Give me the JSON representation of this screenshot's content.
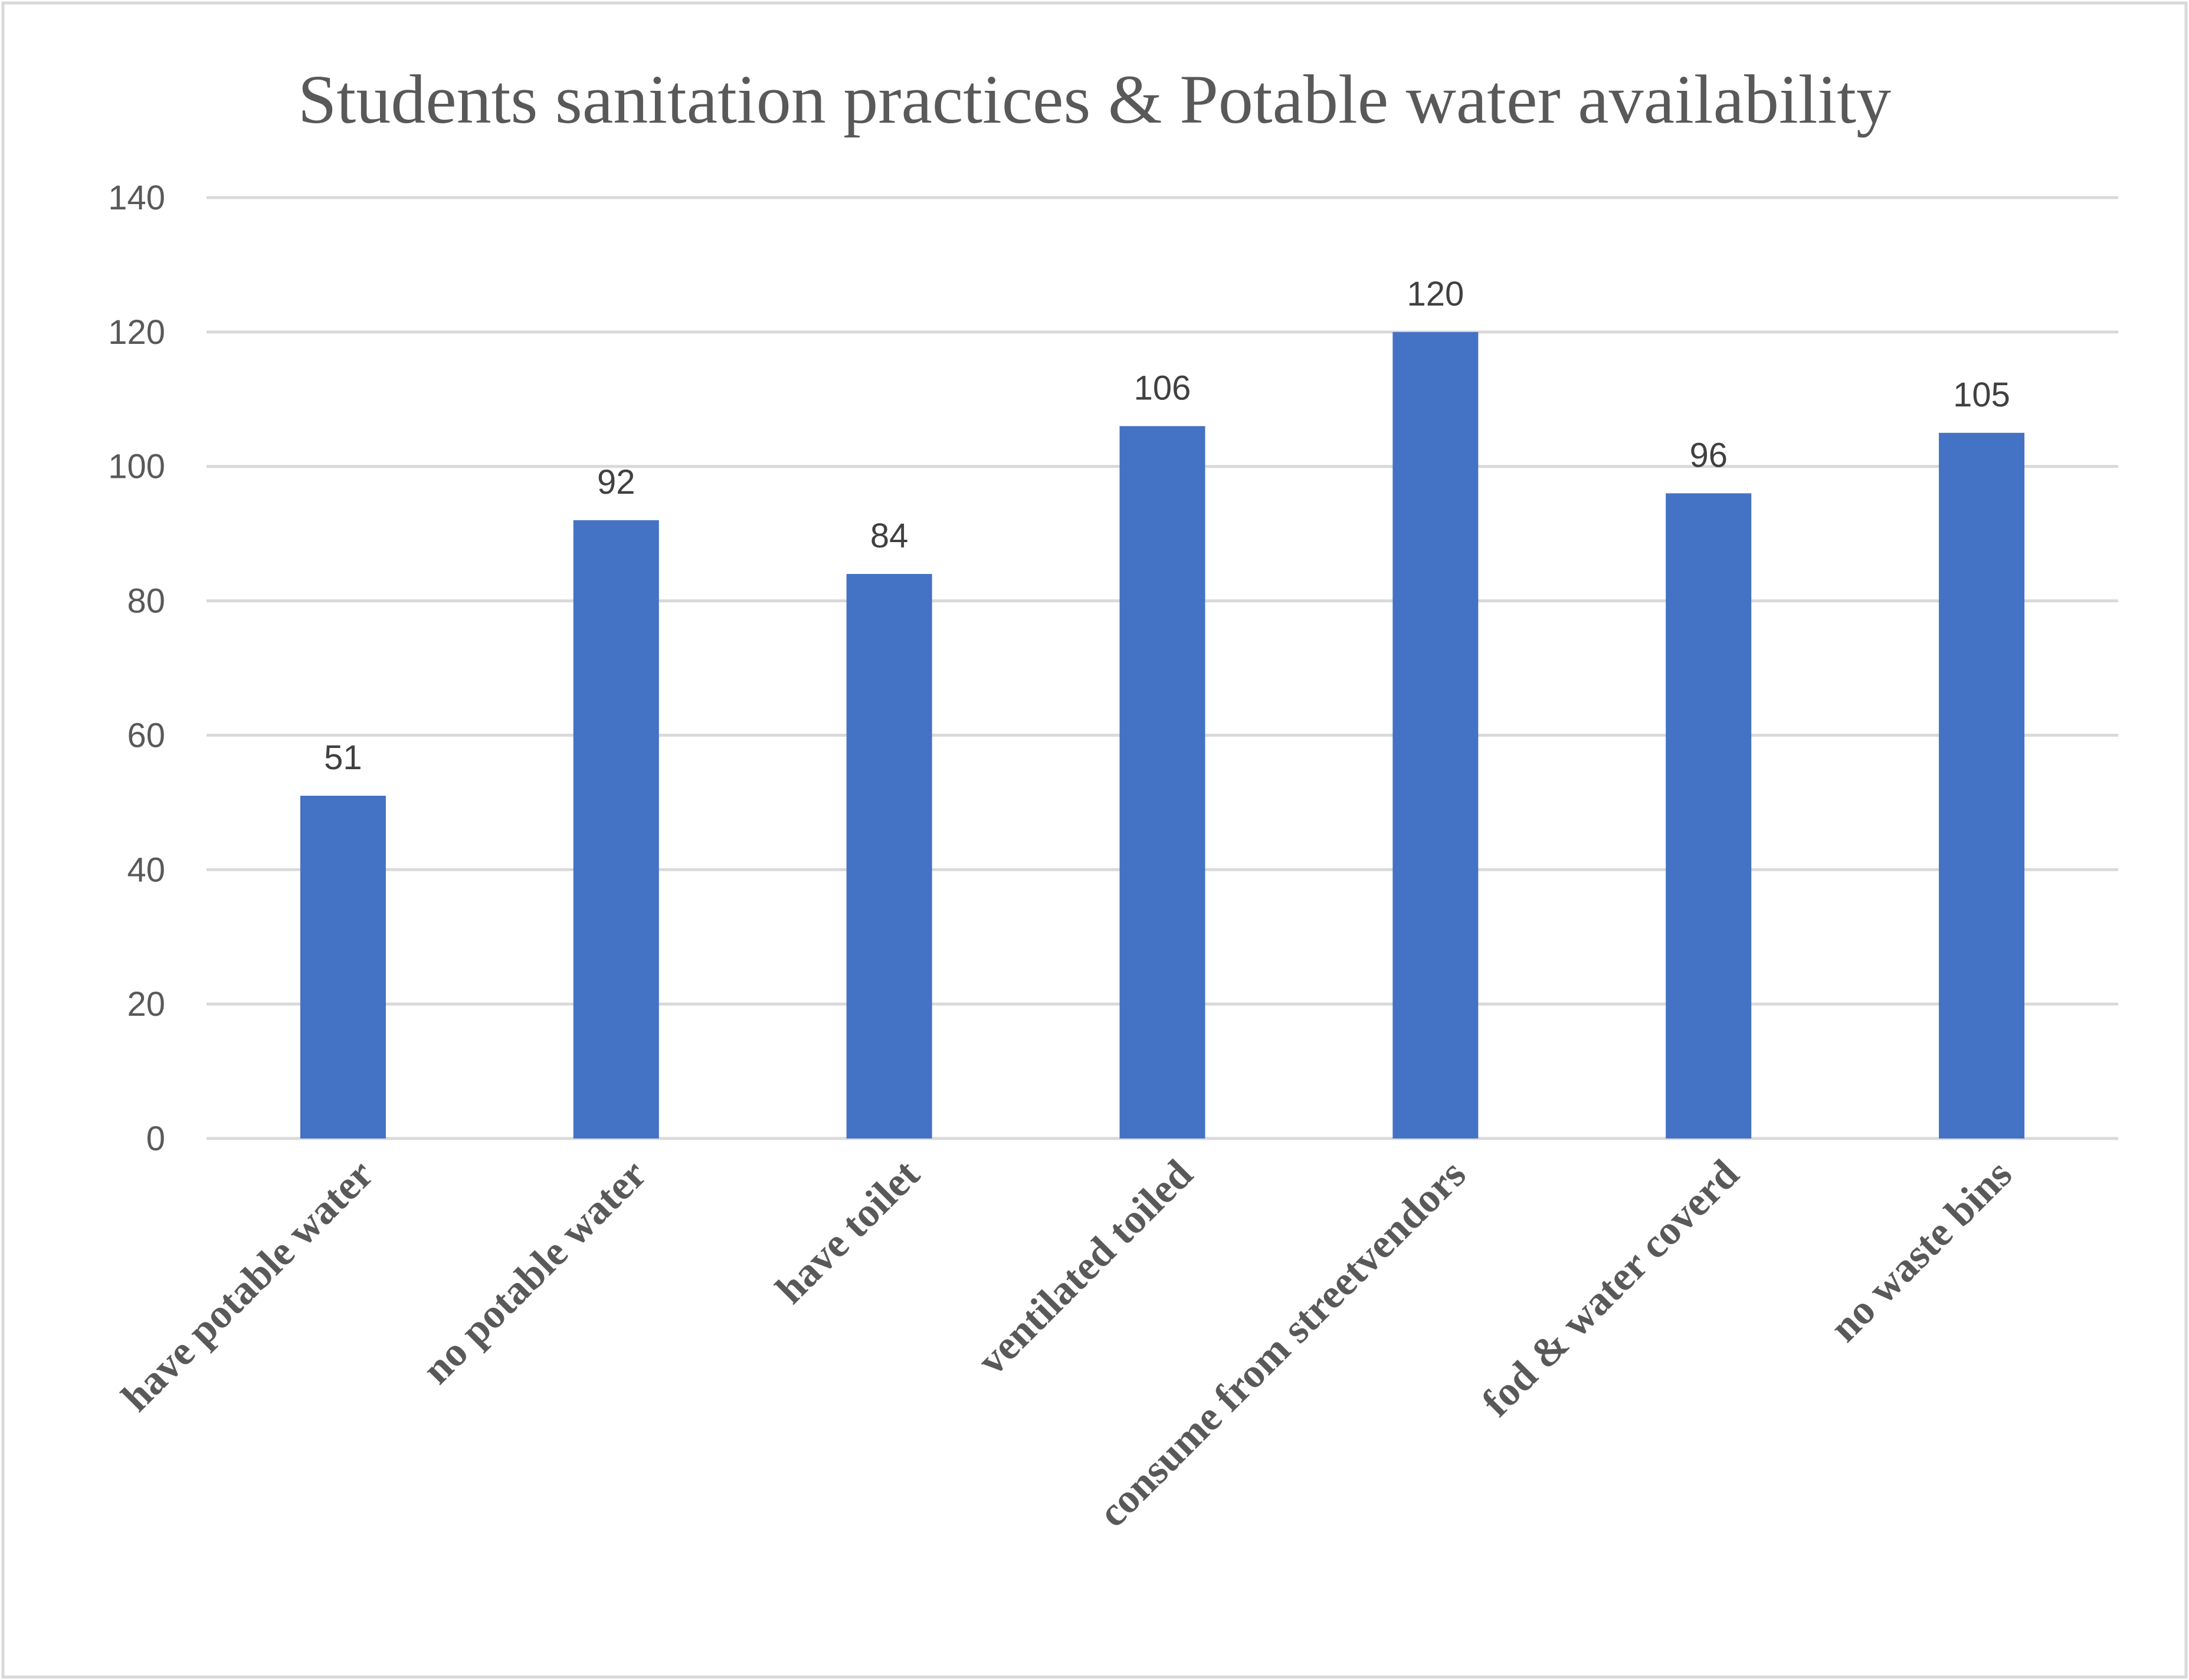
{
  "chart_data": {
    "type": "bar",
    "title": "Students sanitation practices & Potable water availability",
    "categories": [
      "have potable water",
      "no potable water",
      "have toilet",
      "ventilated toiled",
      "consume from streetvendors",
      "fod & water coverd",
      "no waste bins"
    ],
    "values": [
      51,
      92,
      84,
      106,
      120,
      96,
      105
    ],
    "data_labels": [
      "51",
      "92",
      "84",
      "106",
      "120",
      "96",
      "105"
    ],
    "y_ticks": [
      "0",
      "20",
      "40",
      "60",
      "80",
      "100",
      "120",
      "140"
    ],
    "ylim": [
      0,
      140
    ],
    "xlabel": "",
    "ylabel": "",
    "grid": true,
    "legend": "none",
    "colors": {
      "bar": "#4472c4",
      "grid": "#d9d9d9",
      "text": "#595959"
    }
  }
}
